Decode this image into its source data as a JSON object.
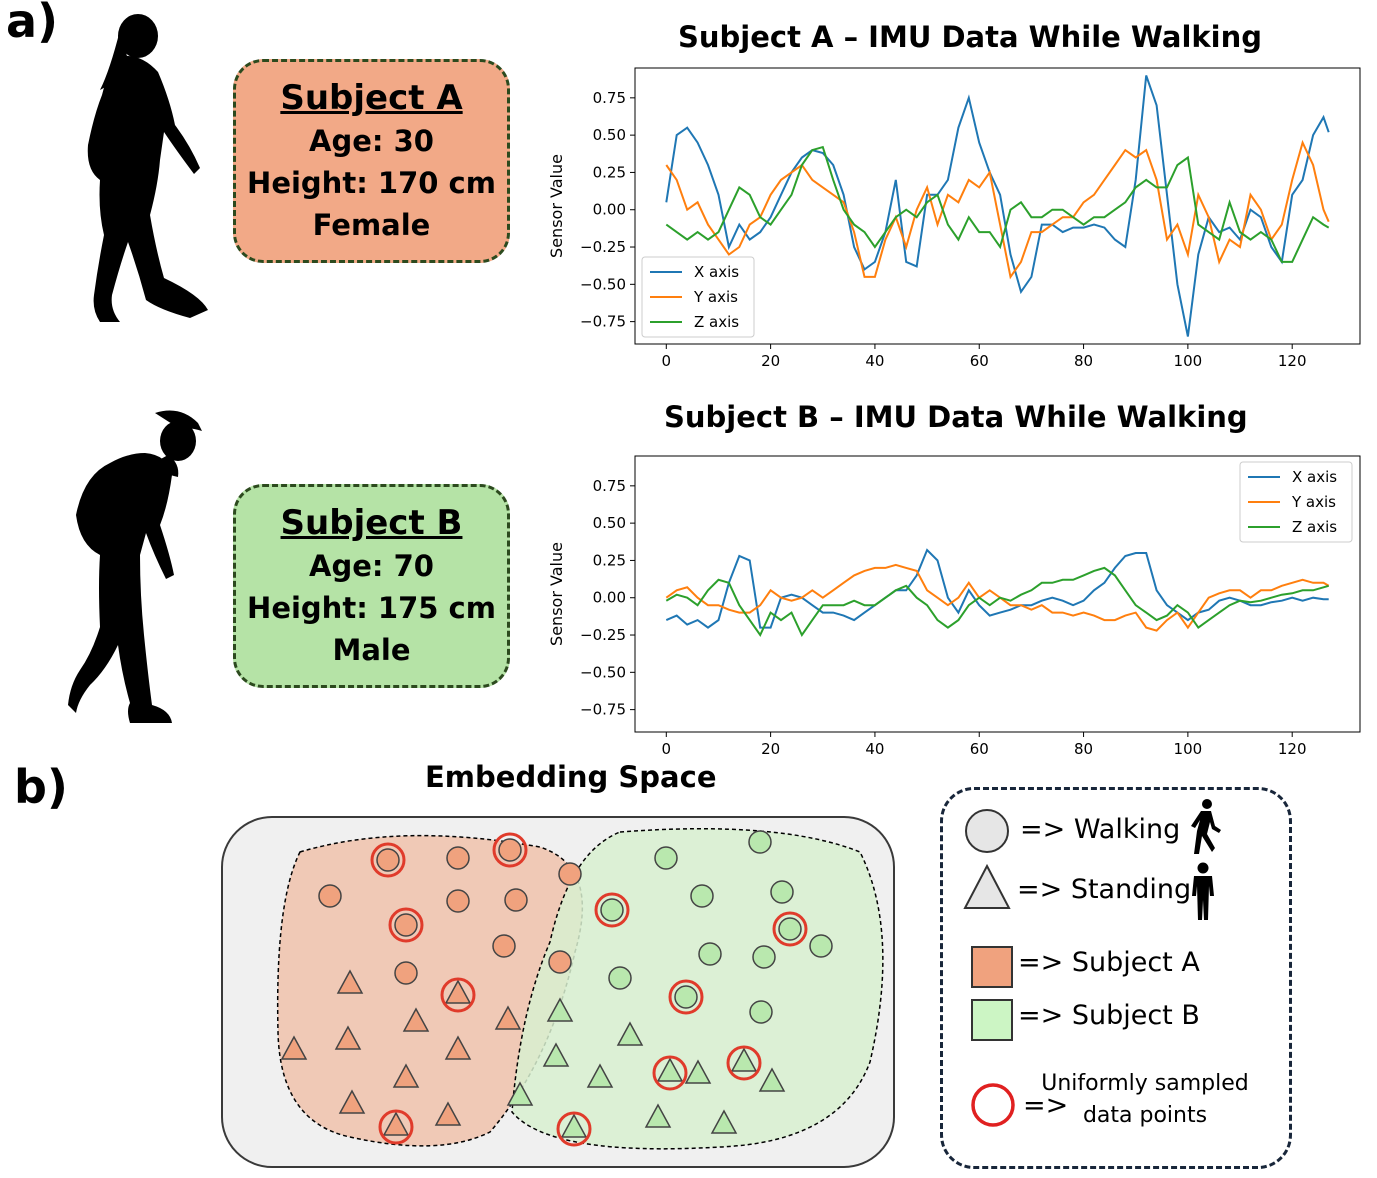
{
  "panel_a": {
    "label": "a)",
    "subject_a": {
      "title": "Subject A",
      "age": "Age: 30",
      "height": "Height: 170 cm",
      "sex": "Female",
      "card_color": "#f2a987"
    },
    "subject_b": {
      "title": "Subject B",
      "age": "Age: 70",
      "height": "Height: 175 cm",
      "sex": "Male",
      "card_color": "#b5e3a6"
    }
  },
  "panel_b": {
    "label": "b)",
    "title": "Embedding Space",
    "legend": {
      "walking": "=> Walking",
      "standing": "=> Standing",
      "subject_a": "=> Subject A",
      "subject_b": "=> Subject B",
      "sampled_arrow": "=>",
      "sampled_line1": "Uniformly sampled",
      "sampled_line2": "data points"
    },
    "colors": {
      "subject_a": "#f0a27e",
      "subject_b": "#b9e8ae",
      "sampled": "#e03b2b",
      "region_a": "#f4c8b3",
      "region_b": "#dcf0d6"
    }
  },
  "chart_data": [
    {
      "type": "line",
      "title": "Subject A – IMU Data While Walking",
      "xlabel": "",
      "ylabel": "Sensor Value",
      "xlim": [
        -6,
        133
      ],
      "ylim": [
        -0.9,
        0.95
      ],
      "xticks": [
        0,
        20,
        40,
        60,
        80,
        100,
        120
      ],
      "yticks": [
        -0.75,
        -0.5,
        -0.25,
        0.0,
        0.25,
        0.5,
        0.75
      ],
      "ytick_labels": [
        "−0.75",
        "−0.50",
        "−0.25",
        "0.00",
        "0.25",
        "0.50",
        "0.75"
      ],
      "legend_position": "lower-left",
      "series": [
        {
          "name": "X axis",
          "color": "#1f77b4",
          "x": [
            0,
            2,
            4,
            6,
            8,
            10,
            12,
            14,
            16,
            18,
            20,
            22,
            24,
            26,
            28,
            30,
            32,
            34,
            36,
            38,
            40,
            42,
            44,
            46,
            48,
            50,
            52,
            54,
            56,
            58,
            60,
            62,
            64,
            66,
            68,
            70,
            72,
            74,
            76,
            78,
            80,
            82,
            84,
            86,
            88,
            90,
            92,
            94,
            96,
            98,
            100,
            102,
            104,
            106,
            108,
            110,
            112,
            114,
            116,
            118,
            120,
            122,
            124,
            126,
            127
          ],
          "y": [
            0.05,
            0.5,
            0.55,
            0.45,
            0.3,
            0.1,
            -0.25,
            -0.1,
            -0.2,
            -0.15,
            -0.05,
            0.1,
            0.25,
            0.35,
            0.4,
            0.38,
            0.3,
            0.1,
            -0.25,
            -0.4,
            -0.35,
            -0.15,
            0.2,
            -0.35,
            -0.38,
            0.1,
            0.1,
            0.2,
            0.55,
            0.75,
            0.45,
            0.25,
            0.1,
            -0.3,
            -0.55,
            -0.45,
            -0.1,
            -0.1,
            -0.15,
            -0.12,
            -0.12,
            -0.1,
            -0.12,
            -0.2,
            -0.25,
            0.2,
            0.9,
            0.7,
            0.1,
            -0.5,
            -0.85,
            -0.3,
            -0.05,
            -0.15,
            -0.12,
            -0.2,
            0.0,
            -0.05,
            -0.25,
            -0.35,
            0.1,
            0.2,
            0.5,
            0.62,
            0.52
          ]
        },
        {
          "name": "Y axis",
          "color": "#ff7f0e",
          "x": [
            0,
            2,
            4,
            6,
            8,
            10,
            12,
            14,
            16,
            18,
            20,
            22,
            24,
            26,
            28,
            30,
            32,
            34,
            36,
            38,
            40,
            42,
            44,
            46,
            48,
            50,
            52,
            54,
            56,
            58,
            60,
            62,
            64,
            66,
            68,
            70,
            72,
            74,
            76,
            78,
            80,
            82,
            84,
            86,
            88,
            90,
            92,
            94,
            96,
            98,
            100,
            102,
            104,
            106,
            108,
            110,
            112,
            114,
            116,
            118,
            120,
            122,
            124,
            126,
            127
          ],
          "y": [
            0.3,
            0.2,
            0.0,
            0.05,
            -0.1,
            -0.2,
            -0.3,
            -0.25,
            -0.1,
            -0.05,
            0.1,
            0.2,
            0.25,
            0.3,
            0.2,
            0.15,
            0.1,
            0.05,
            -0.15,
            -0.45,
            -0.45,
            -0.2,
            -0.05,
            -0.25,
            0.0,
            0.15,
            -0.1,
            0.1,
            0.05,
            0.2,
            0.15,
            0.25,
            -0.1,
            -0.45,
            -0.35,
            -0.15,
            -0.15,
            -0.1,
            -0.05,
            -0.05,
            0.05,
            0.1,
            0.2,
            0.3,
            0.4,
            0.35,
            0.4,
            0.2,
            -0.2,
            -0.1,
            -0.3,
            0.1,
            -0.05,
            -0.35,
            -0.2,
            -0.25,
            0.1,
            0.0,
            -0.2,
            -0.1,
            0.2,
            0.45,
            0.3,
            0.0,
            -0.08
          ]
        },
        {
          "name": "Z axis",
          "color": "#2ca02c",
          "x": [
            0,
            2,
            4,
            6,
            8,
            10,
            12,
            14,
            16,
            18,
            20,
            22,
            24,
            26,
            28,
            30,
            32,
            34,
            36,
            38,
            40,
            42,
            44,
            46,
            48,
            50,
            52,
            54,
            56,
            58,
            60,
            62,
            64,
            66,
            68,
            70,
            72,
            74,
            76,
            78,
            80,
            82,
            84,
            86,
            88,
            90,
            92,
            94,
            96,
            98,
            100,
            102,
            104,
            106,
            108,
            110,
            112,
            114,
            116,
            118,
            120,
            122,
            124,
            126,
            127
          ],
          "y": [
            -0.1,
            -0.15,
            -0.2,
            -0.15,
            -0.2,
            -0.15,
            0.0,
            0.15,
            0.1,
            -0.05,
            -0.1,
            0.0,
            0.1,
            0.3,
            0.4,
            0.42,
            0.2,
            0.0,
            -0.1,
            -0.15,
            -0.25,
            -0.15,
            -0.05,
            0.0,
            -0.05,
            0.05,
            0.1,
            -0.1,
            -0.2,
            -0.05,
            -0.15,
            -0.15,
            -0.25,
            0.0,
            0.05,
            -0.05,
            -0.05,
            0.0,
            0.0,
            -0.05,
            -0.1,
            -0.05,
            -0.05,
            0.0,
            0.05,
            0.15,
            0.2,
            0.15,
            0.15,
            0.3,
            0.35,
            -0.1,
            -0.15,
            -0.2,
            0.05,
            -0.15,
            -0.2,
            -0.15,
            -0.2,
            -0.35,
            -0.35,
            -0.2,
            -0.05,
            -0.1,
            -0.12
          ]
        }
      ]
    },
    {
      "type": "line",
      "title": "Subject B – IMU Data While Walking",
      "xlabel": "",
      "ylabel": "Sensor Value",
      "xlim": [
        -6,
        133
      ],
      "ylim": [
        -0.9,
        0.95
      ],
      "xticks": [
        0,
        20,
        40,
        60,
        80,
        100,
        120
      ],
      "yticks": [
        -0.75,
        -0.5,
        -0.25,
        0.0,
        0.25,
        0.5,
        0.75
      ],
      "ytick_labels": [
        "−0.75",
        "−0.50",
        "−0.25",
        "0.00",
        "0.25",
        "0.50",
        "0.75"
      ],
      "legend_position": "upper-right",
      "series": [
        {
          "name": "X axis",
          "color": "#1f77b4",
          "x": [
            0,
            2,
            4,
            6,
            8,
            10,
            12,
            14,
            16,
            18,
            20,
            22,
            24,
            26,
            28,
            30,
            32,
            34,
            36,
            38,
            40,
            42,
            44,
            46,
            48,
            50,
            52,
            54,
            56,
            58,
            60,
            62,
            64,
            66,
            68,
            70,
            72,
            74,
            76,
            78,
            80,
            82,
            84,
            86,
            88,
            90,
            92,
            94,
            96,
            98,
            100,
            102,
            104,
            106,
            108,
            110,
            112,
            114,
            116,
            118,
            120,
            122,
            124,
            126,
            127
          ],
          "y": [
            -0.15,
            -0.12,
            -0.18,
            -0.15,
            -0.2,
            -0.15,
            0.1,
            0.28,
            0.25,
            -0.2,
            -0.2,
            0.0,
            0.02,
            0.0,
            -0.05,
            -0.1,
            -0.1,
            -0.12,
            -0.15,
            -0.1,
            -0.05,
            0.0,
            0.05,
            0.05,
            0.15,
            0.32,
            0.25,
            0.0,
            -0.1,
            0.05,
            -0.05,
            -0.12,
            -0.1,
            -0.08,
            -0.05,
            -0.05,
            -0.02,
            0.0,
            -0.02,
            -0.05,
            -0.02,
            0.05,
            0.1,
            0.2,
            0.28,
            0.3,
            0.3,
            0.05,
            -0.05,
            -0.1,
            -0.15,
            -0.1,
            -0.08,
            -0.02,
            0.0,
            -0.02,
            -0.05,
            -0.05,
            -0.03,
            -0.02,
            0.0,
            -0.02,
            0.0,
            -0.01,
            -0.01
          ]
        },
        {
          "name": "Y axis",
          "color": "#ff7f0e",
          "x": [
            0,
            2,
            4,
            6,
            8,
            10,
            12,
            14,
            16,
            18,
            20,
            22,
            24,
            26,
            28,
            30,
            32,
            34,
            36,
            38,
            40,
            42,
            44,
            46,
            48,
            50,
            52,
            54,
            56,
            58,
            60,
            62,
            64,
            66,
            68,
            70,
            72,
            74,
            76,
            78,
            80,
            82,
            84,
            86,
            88,
            90,
            92,
            94,
            96,
            98,
            100,
            102,
            104,
            106,
            108,
            110,
            112,
            114,
            116,
            118,
            120,
            122,
            124,
            126,
            127
          ],
          "y": [
            0.0,
            0.05,
            0.07,
            0.0,
            -0.05,
            -0.05,
            -0.08,
            -0.1,
            -0.1,
            -0.05,
            0.05,
            0.0,
            -0.02,
            0.0,
            0.05,
            0.0,
            0.05,
            0.1,
            0.15,
            0.18,
            0.2,
            0.2,
            0.22,
            0.2,
            0.18,
            0.05,
            0.0,
            -0.05,
            0.0,
            0.1,
            0.0,
            0.05,
            0.0,
            -0.05,
            -0.05,
            -0.08,
            -0.05,
            -0.1,
            -0.1,
            -0.12,
            -0.1,
            -0.12,
            -0.15,
            -0.15,
            -0.12,
            -0.1,
            -0.2,
            -0.22,
            -0.15,
            -0.1,
            -0.2,
            -0.1,
            0.0,
            0.03,
            0.05,
            0.05,
            0.0,
            0.05,
            0.05,
            0.08,
            0.1,
            0.12,
            0.1,
            0.1,
            0.08
          ]
        },
        {
          "name": "Z axis",
          "color": "#2ca02c",
          "x": [
            0,
            2,
            4,
            6,
            8,
            10,
            12,
            14,
            16,
            18,
            20,
            22,
            24,
            26,
            28,
            30,
            32,
            34,
            36,
            38,
            40,
            42,
            44,
            46,
            48,
            50,
            52,
            54,
            56,
            58,
            60,
            62,
            64,
            66,
            68,
            70,
            72,
            74,
            76,
            78,
            80,
            82,
            84,
            86,
            88,
            90,
            92,
            94,
            96,
            98,
            100,
            102,
            104,
            106,
            108,
            110,
            112,
            114,
            116,
            118,
            120,
            122,
            124,
            126,
            127
          ],
          "y": [
            -0.02,
            0.02,
            0.0,
            -0.05,
            0.05,
            0.12,
            0.1,
            -0.05,
            -0.15,
            -0.25,
            -0.1,
            -0.15,
            -0.1,
            -0.25,
            -0.15,
            -0.05,
            -0.05,
            -0.05,
            -0.02,
            -0.05,
            -0.05,
            0.0,
            0.05,
            0.08,
            0.0,
            -0.05,
            -0.15,
            -0.2,
            -0.15,
            -0.05,
            0.0,
            -0.05,
            0.0,
            -0.02,
            0.02,
            0.05,
            0.1,
            0.1,
            0.12,
            0.12,
            0.15,
            0.18,
            0.2,
            0.15,
            0.05,
            -0.05,
            -0.1,
            -0.15,
            -0.12,
            -0.05,
            -0.1,
            -0.2,
            -0.15,
            -0.1,
            -0.05,
            -0.02,
            -0.03,
            -0.02,
            0.0,
            0.02,
            0.03,
            0.05,
            0.05,
            0.07,
            0.08
          ]
        }
      ]
    }
  ]
}
